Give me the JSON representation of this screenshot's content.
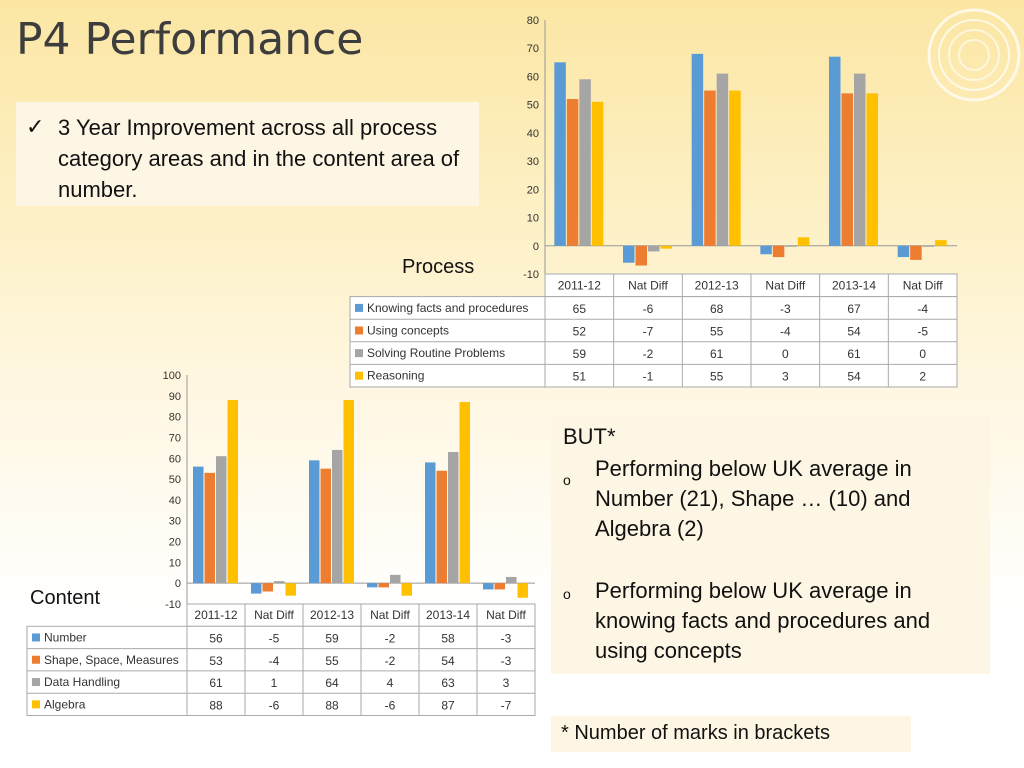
{
  "slide": {
    "title": "P4 Performance",
    "point1": "3 Year Improvement across all process category areas and in the content area of number.",
    "check_glyph": "✓",
    "but_heading": "BUT*",
    "bullets": [
      "Performing below UK average in Number (21), Shape … (10) and Algebra (2)",
      "Performing below UK average in knowing facts and procedures and using concepts"
    ],
    "bullet_glyph": "o",
    "footnote": "* Number of marks in brackets",
    "process_label": "Process",
    "content_label": "Content"
  },
  "colors": {
    "blue": "#5b9bd5",
    "orange": "#ed7d31",
    "gray": "#a5a5a5",
    "yellow": "#ffc000"
  },
  "chart_data": [
    {
      "type": "bar",
      "categories": [
        "2011-12",
        "Nat Diff",
        "2012-13",
        "Nat Diff",
        "2013-14",
        "Nat Diff"
      ],
      "ylim": [
        -10,
        80
      ],
      "yticks": [
        80,
        70,
        60,
        50,
        40,
        30,
        20,
        10,
        0,
        -10
      ],
      "series": [
        {
          "name": "Knowing facts and procedures",
          "values": [
            65,
            -6,
            68,
            -3,
            67,
            -4
          ]
        },
        {
          "name": "Using concepts",
          "values": [
            52,
            -7,
            55,
            -4,
            54,
            -5
          ]
        },
        {
          "name": "Solving Routine Problems",
          "values": [
            59,
            -2,
            61,
            0,
            61,
            0
          ]
        },
        {
          "name": "Reasoning",
          "values": [
            51,
            -1,
            55,
            3,
            54,
            2
          ]
        }
      ]
    },
    {
      "type": "bar",
      "categories": [
        "2011-12",
        "Nat Diff",
        "2012-13",
        "Nat Diff",
        "2013-14",
        "Nat Diff"
      ],
      "ylim": [
        -10,
        100
      ],
      "yticks": [
        100,
        90,
        80,
        70,
        60,
        50,
        40,
        30,
        20,
        10,
        0,
        -10
      ],
      "series": [
        {
          "name": "Number",
          "values": [
            56,
            -5,
            59,
            -2,
            58,
            -3
          ]
        },
        {
          "name": "Shape, Space, Measures",
          "values": [
            53,
            -4,
            55,
            -2,
            54,
            -3
          ]
        },
        {
          "name": "Data Handling",
          "values": [
            61,
            1,
            64,
            4,
            63,
            3
          ]
        },
        {
          "name": "Algebra",
          "values": [
            88,
            -6,
            88,
            -6,
            87,
            -7
          ]
        }
      ]
    }
  ]
}
